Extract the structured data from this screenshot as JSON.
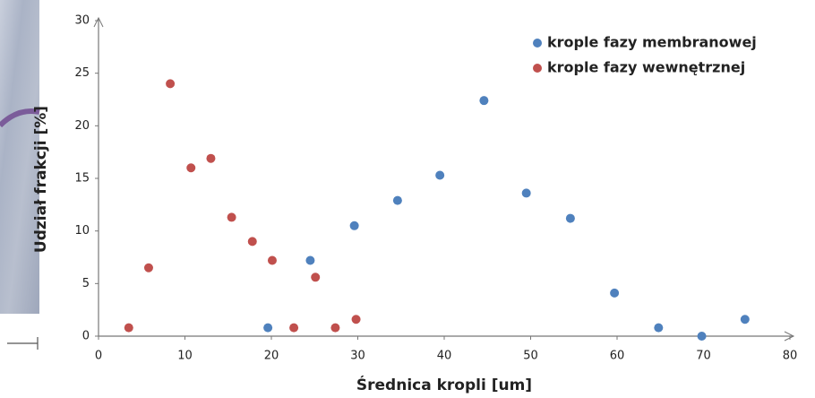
{
  "chart_data": {
    "type": "scatter",
    "xlabel": "Średnica kropli [um]",
    "ylabel": "Udział frakcji [%]",
    "xlim": [
      0,
      80
    ],
    "xticks": [
      0,
      10,
      20,
      30,
      40,
      50,
      60,
      70,
      80
    ],
    "ylim": [
      0,
      30
    ],
    "yticks": [
      0,
      5,
      10,
      15,
      20,
      25,
      30
    ],
    "legend": "upper-right",
    "series": [
      {
        "name": "krople fazy membranowej",
        "color": "#4f81bd",
        "x": [
          19.6,
          24.5,
          29.6,
          34.6,
          39.5,
          44.6,
          49.5,
          54.6,
          59.7,
          64.8,
          69.8,
          74.8
        ],
        "values": [
          0.8,
          7.2,
          10.5,
          12.9,
          15.3,
          22.4,
          13.6,
          11.2,
          4.1,
          0.8,
          0,
          1.6
        ]
      },
      {
        "name": "krople fazy wewnętrznej",
        "color": "#c0504d",
        "x": [
          3.5,
          5.8,
          8.3,
          10.7,
          13.0,
          15.4,
          17.8,
          20.1,
          22.6,
          25.1,
          27.4,
          29.8
        ],
        "values": [
          0.8,
          6.5,
          24.0,
          16.0,
          16.9,
          11.3,
          9.0,
          7.2,
          0.8,
          5.6,
          0.8,
          1.6
        ]
      }
    ]
  }
}
